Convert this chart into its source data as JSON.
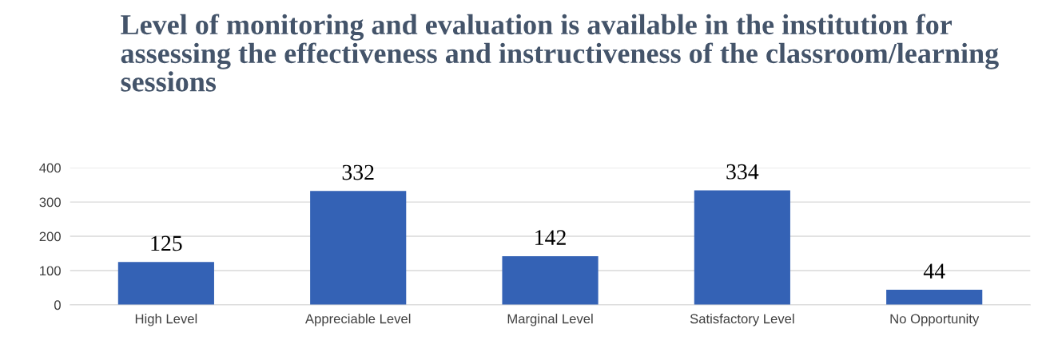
{
  "chart_data": {
    "type": "bar",
    "title": "Level of monitoring and evaluation is available in the institution for assessing the effectiveness and instructiveness of the classroom/learning sessions",
    "categories": [
      "High Level",
      "Appreciable Level",
      "Marginal Level",
      "Satisfactory Level",
      "No Opportunity"
    ],
    "values": [
      125,
      332,
      142,
      334,
      44
    ],
    "color": "#3462b5",
    "ylim": [
      0,
      400
    ],
    "yticks": [
      0,
      100,
      200,
      300,
      400
    ],
    "grid": "y",
    "data_labels": true
  }
}
